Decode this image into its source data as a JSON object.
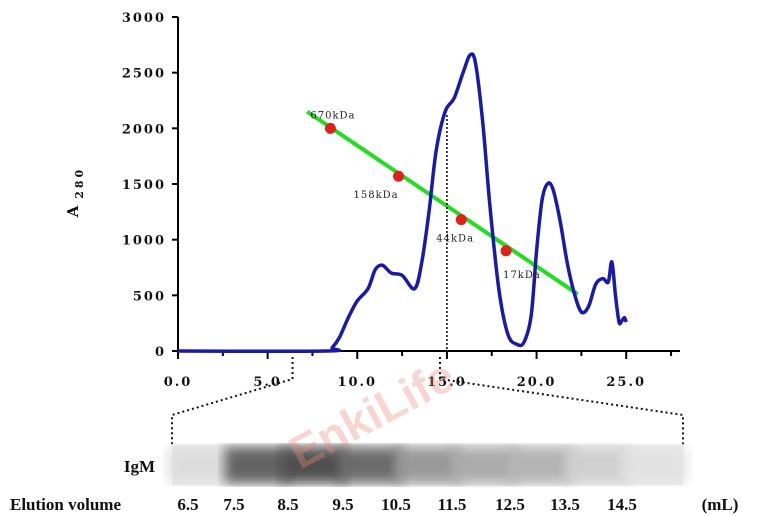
{
  "chart_data": {
    "type": "line",
    "xlim": [
      0,
      28
    ],
    "ylim": [
      0,
      3000
    ],
    "x_ticks": [
      "0.0",
      "5.0",
      "10.0",
      "15.0",
      "20.0",
      "25.0"
    ],
    "x_tick_values": [
      0,
      5,
      10,
      15,
      20,
      25
    ],
    "y_ticks": [
      "0",
      "500",
      "1000",
      "1500",
      "2000",
      "2500",
      "3000"
    ],
    "y_tick_values": [
      0,
      500,
      1000,
      1500,
      2000,
      2500,
      3000
    ],
    "ylabel": "A",
    "ylabel_sub": "280",
    "series": [
      {
        "color": "#1a1aa8",
        "x": [
          0,
          8.3,
          8.6,
          9.0,
          9.5,
          10.0,
          10.6,
          11.0,
          11.4,
          11.9,
          12.5,
          13.2,
          13.6,
          14.0,
          14.4,
          14.9,
          15.4,
          15.9,
          16.3,
          16.6,
          17.0,
          17.4,
          17.9,
          18.4,
          18.9,
          19.3,
          19.7,
          20.0,
          20.3,
          20.6,
          20.9,
          21.3,
          21.7,
          22.1,
          22.5,
          22.9,
          23.3,
          23.7,
          24.0,
          24.2,
          24.4,
          24.6,
          24.75,
          24.9,
          25.0
        ],
        "y": [
          0,
          0,
          30,
          120,
          300,
          450,
          560,
          730,
          770,
          700,
          680,
          560,
          800,
          1250,
          1800,
          2150,
          2270,
          2500,
          2660,
          2580,
          2050,
          1300,
          550,
          150,
          60,
          80,
          320,
          900,
          1350,
          1500,
          1460,
          1180,
          800,
          520,
          350,
          400,
          600,
          650,
          620,
          800,
          500,
          260,
          270,
          300,
          260
        ]
      }
    ],
    "calibration": {
      "color": "#22dd22",
      "line": {
        "x": [
          7.2,
          22.3
        ],
        "y": [
          2150,
          510
        ]
      },
      "standards": [
        {
          "label": "670kDa",
          "x": 8.5,
          "y": 2000
        },
        {
          "label": "158kDa",
          "x": 12.3,
          "y": 1570
        },
        {
          "label": "44kDa",
          "x": 15.8,
          "y": 1180
        },
        {
          "label": "17kDa",
          "x": 18.3,
          "y": 900
        }
      ]
    },
    "marker_x": 15.0,
    "marker_y": 2120,
    "zoom_range": [
      6.5,
      14.5
    ]
  },
  "blot": {
    "row_label": "IgM",
    "axis_label": "Elution volume",
    "unit": "(mL)",
    "fractions": [
      "6.5",
      "7.5",
      "8.5",
      "9.5",
      "10.5",
      "11.5",
      "12.5",
      "13.5",
      "14.5"
    ],
    "band_intensity": [
      0.08,
      0.75,
      0.85,
      0.7,
      0.45,
      0.35,
      0.3,
      0.15,
      0.05
    ]
  },
  "watermark": "EnkiLife",
  "colors": {
    "trace": "#1a1aa8",
    "calibration": "#22dd22",
    "standard_dot": "#e0201a",
    "axis": "#000000"
  }
}
